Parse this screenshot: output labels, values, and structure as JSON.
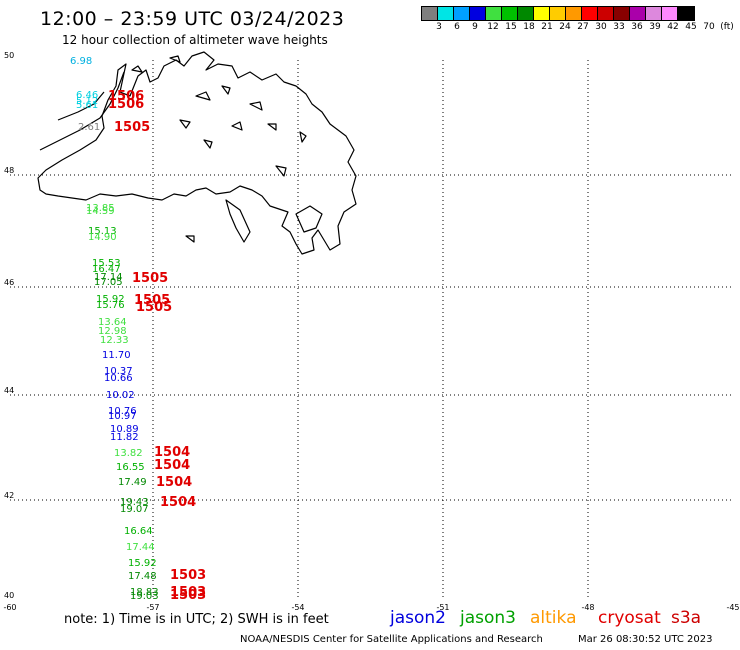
{
  "header": {
    "title": "12:00 – 23:59 UTC 03/24/2023",
    "subtitle": "12 hour collection of altimeter wave heights"
  },
  "legend": {
    "colors": [
      "#7f7f7f",
      "#00e5e5",
      "#00a0ff",
      "#0000e0",
      "#40e040",
      "#00c000",
      "#008800",
      "#ffff00",
      "#ffcc00",
      "#ff9900",
      "#ff0000",
      "#cc0000",
      "#880000",
      "#aa00aa",
      "#dd88dd",
      "#ff88ff",
      "#000000"
    ],
    "labels": [
      "3",
      "6",
      "9",
      "12",
      "15",
      "18",
      "21",
      "24",
      "27",
      "30",
      "33",
      "36",
      "39",
      "42",
      "45",
      "70",
      "(ft)"
    ]
  },
  "axes": {
    "lat_labels": [
      "50",
      "48",
      "46",
      "44",
      "42",
      "40"
    ],
    "lon_labels": [
      "-60",
      "-57",
      "-54",
      "-51",
      "-48",
      "-45"
    ]
  },
  "observations": [
    {
      "text": "6.98",
      "color": "#00b0e0"
    },
    {
      "text": "6.46",
      "color": "#00d0e0"
    },
    {
      "text": "5.12",
      "color": "#00d0e0"
    },
    {
      "text": "5.61",
      "color": "#00d0e0"
    },
    {
      "text": "2.61",
      "color": "#7f7f7f"
    },
    {
      "text": "13.85",
      "color": "#40e040"
    },
    {
      "text": "14.59",
      "color": "#40e040"
    },
    {
      "text": "15.13",
      "color": "#00b000"
    },
    {
      "text": "14.90",
      "color": "#40e040"
    },
    {
      "text": "15.53",
      "color": "#00b000"
    },
    {
      "text": "16.47",
      "color": "#00b000"
    },
    {
      "text": "17.14",
      "color": "#008800"
    },
    {
      "text": "17.05",
      "color": "#008800"
    },
    {
      "text": "15.92",
      "color": "#00b000"
    },
    {
      "text": "15.76",
      "color": "#00b000"
    },
    {
      "text": "13.64",
      "color": "#40e040"
    },
    {
      "text": "12.98",
      "color": "#40e040"
    },
    {
      "text": "12.33",
      "color": "#40e040"
    },
    {
      "text": "11.70",
      "color": "#0000e0"
    },
    {
      "text": "10.37",
      "color": "#0000e0"
    },
    {
      "text": "10.66",
      "color": "#0000e0"
    },
    {
      "text": "10.02",
      "color": "#0000e0"
    },
    {
      "text": "10.76",
      "color": "#0000e0"
    },
    {
      "text": "10.97",
      "color": "#0000e0"
    },
    {
      "text": "10.89",
      "color": "#0000e0"
    },
    {
      "text": "11.82",
      "color": "#0000e0"
    },
    {
      "text": "13.82",
      "color": "#40e040"
    },
    {
      "text": "16.55",
      "color": "#00b000"
    },
    {
      "text": "17.49",
      "color": "#008800"
    },
    {
      "text": "19.43",
      "color": "#008800"
    },
    {
      "text": "19.07",
      "color": "#008800"
    },
    {
      "text": "16.64",
      "color": "#00b000"
    },
    {
      "text": "17.44",
      "color": "#40e040"
    },
    {
      "text": "15.92",
      "color": "#00b000"
    },
    {
      "text": "17.48",
      "color": "#008800"
    },
    {
      "text": "18.83",
      "color": "#008800"
    },
    {
      "text": "19.03",
      "color": "#008800"
    }
  ],
  "revolutions": [
    "1506",
    "1506",
    "1505",
    "1505",
    "1505",
    "1505",
    "1504",
    "1504",
    "1504",
    "1504",
    "1503",
    "1503",
    "1503"
  ],
  "footer": {
    "note": "note: 1) Time is in UTC; 2) SWH is in feet",
    "satellites": [
      {
        "name": "jason2",
        "color": "#0000dd"
      },
      {
        "name": "jason3",
        "color": "#00a000"
      },
      {
        "name": "altika",
        "color": "#ff9900"
      },
      {
        "name": "cryosat",
        "color": "#e00000"
      },
      {
        "name": "s3a",
        "color": "#cc0000"
      }
    ],
    "credit": "NOAA/NESDIS Center for Satellite Applications and Research",
    "timestamp": "Mar 26 08:30:52 UTC 2023"
  }
}
